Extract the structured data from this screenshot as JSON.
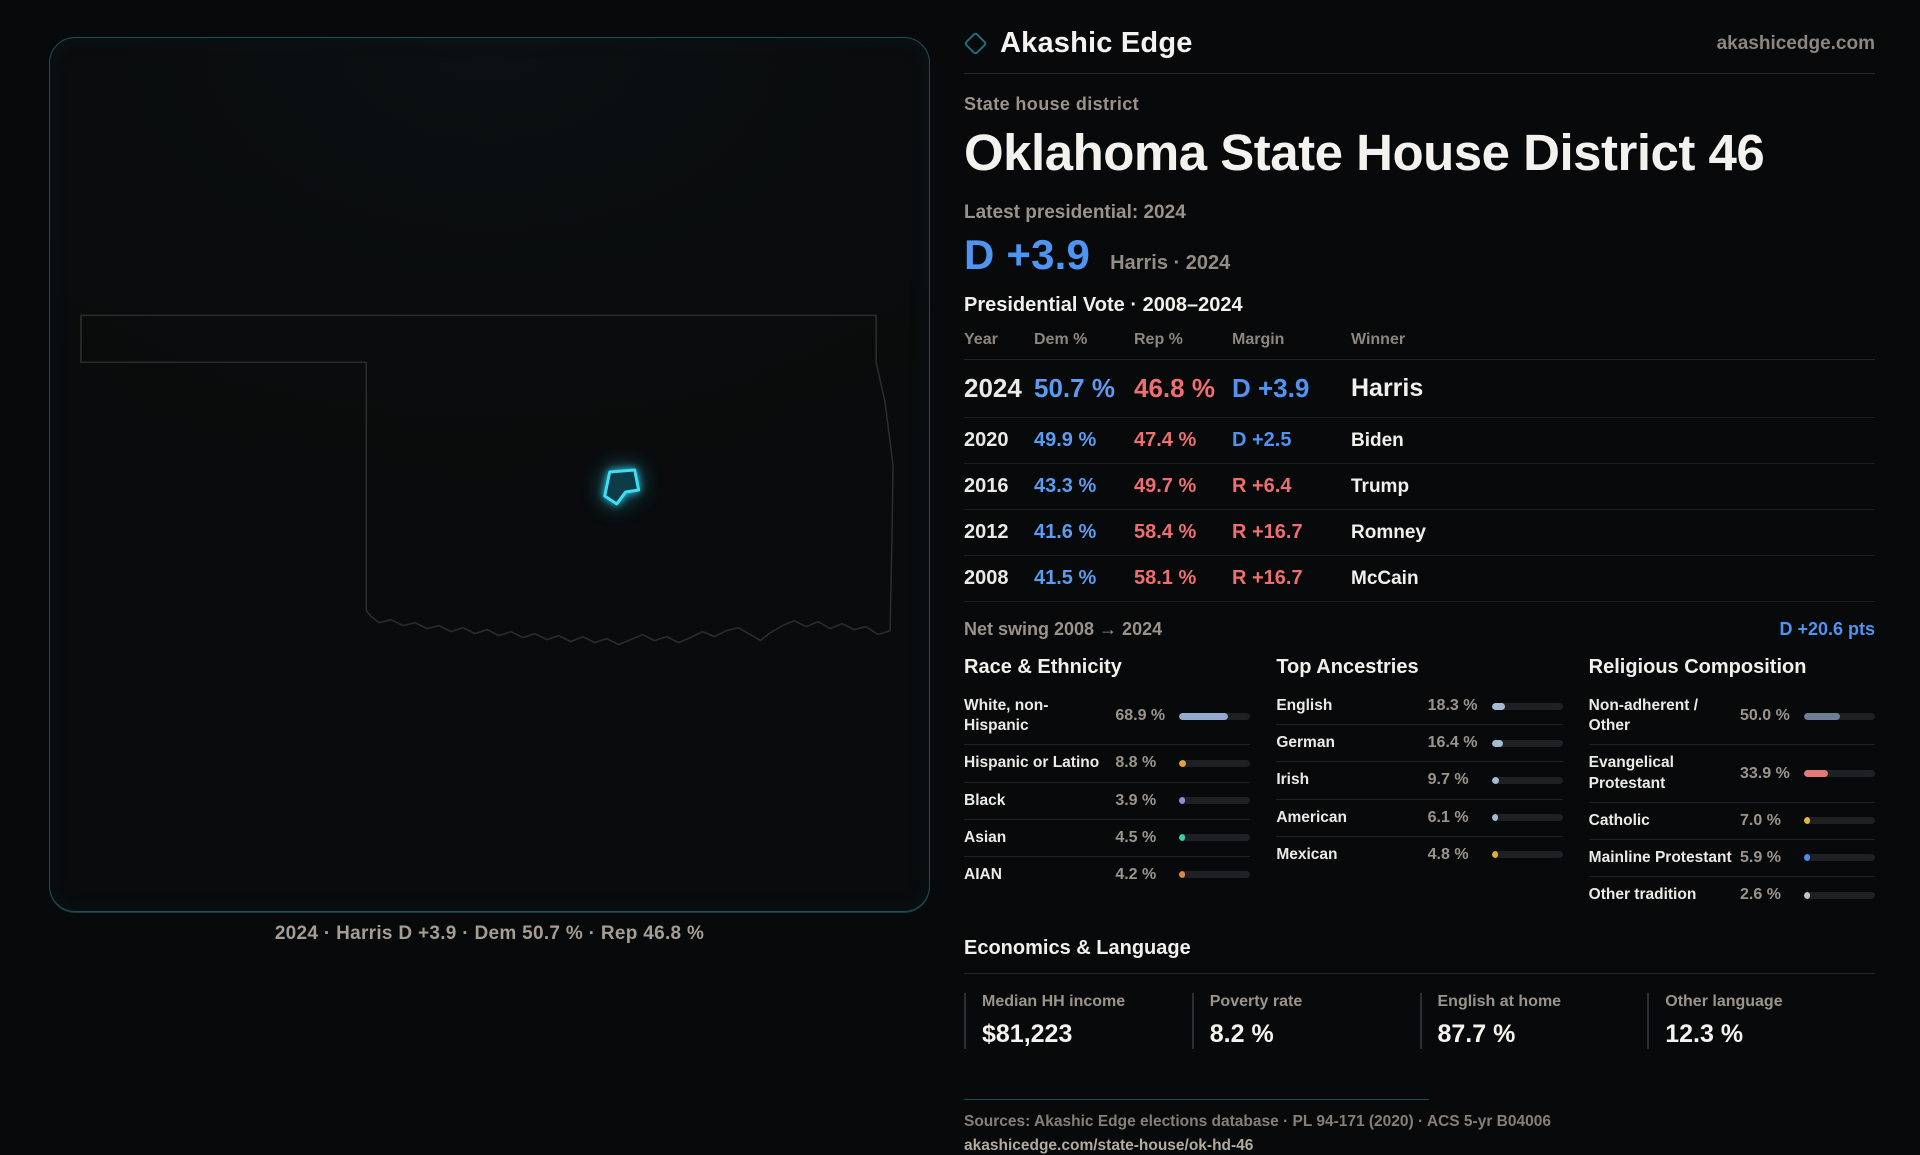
{
  "brand": {
    "name": "Akashic Edge",
    "site": "akashicedge.com"
  },
  "header": {
    "kicker": "State house district",
    "title": "Oklahoma State House District 46",
    "latest_label": "Latest presidential: 2024",
    "margin_big": "D +3.9",
    "margin_context": "Harris · 2024"
  },
  "pres_table": {
    "title": "Presidential Vote · 2008–2024",
    "columns": {
      "year": "Year",
      "dem": "Dem %",
      "rep": "Rep %",
      "margin": "Margin",
      "winner": "Winner"
    },
    "rows": [
      {
        "year": "2024",
        "dem": "50.7 %",
        "rep": "46.8 %",
        "margin": "D +3.9",
        "party": "D",
        "winner": "Harris"
      },
      {
        "year": "2020",
        "dem": "49.9 %",
        "rep": "47.4 %",
        "margin": "D +2.5",
        "party": "D",
        "winner": "Biden"
      },
      {
        "year": "2016",
        "dem": "43.3 %",
        "rep": "49.7 %",
        "margin": "R +6.4",
        "party": "R",
        "winner": "Trump"
      },
      {
        "year": "2012",
        "dem": "41.6 %",
        "rep": "58.4 %",
        "margin": "R +16.7",
        "party": "R",
        "winner": "Romney"
      },
      {
        "year": "2008",
        "dem": "41.5 %",
        "rep": "58.1 %",
        "margin": "R +16.7",
        "party": "R",
        "winner": "McCain"
      }
    ]
  },
  "net_swing": {
    "label": "Net swing 2008 → 2024",
    "value": "D +20.6 pts"
  },
  "demographics": {
    "race": {
      "title": "Race & Ethnicity",
      "rows": [
        {
          "label": "White, non-Hispanic",
          "value": "68.9 %",
          "pct": 68.9,
          "color": "#94aacb"
        },
        {
          "label": "Hispanic or Latino",
          "value": "8.8 %",
          "pct": 8.8,
          "color": "#e2a33d"
        },
        {
          "label": "Black",
          "value": "3.9 %",
          "pct": 3.9,
          "color": "#9c85e8"
        },
        {
          "label": "Asian",
          "value": "4.5 %",
          "pct": 4.5,
          "color": "#3fcea3"
        },
        {
          "label": "AIAN",
          "value": "4.2 %",
          "pct": 4.2,
          "color": "#de8a3b"
        }
      ]
    },
    "ancestries": {
      "title": "Top Ancestries",
      "rows": [
        {
          "label": "English",
          "value": "18.3 %",
          "pct": 18.3,
          "color": "#a7bad4"
        },
        {
          "label": "German",
          "value": "16.4 %",
          "pct": 16.4,
          "color": "#a7bad4"
        },
        {
          "label": "Irish",
          "value": "9.7 %",
          "pct": 9.7,
          "color": "#a7bad4"
        },
        {
          "label": "American",
          "value": "6.1 %",
          "pct": 6.1,
          "color": "#a7bad4"
        },
        {
          "label": "Mexican",
          "value": "4.8 %",
          "pct": 4.8,
          "color": "#e8ab34"
        }
      ]
    },
    "religion": {
      "title": "Religious Composition",
      "rows": [
        {
          "label": "Non-adherent / Other",
          "value": "50.0 %",
          "pct": 50.0,
          "color": "#6e7e93"
        },
        {
          "label": "Evangelical Protestant",
          "value": "33.9 %",
          "pct": 33.9,
          "color": "#e27a77"
        },
        {
          "label": "Catholic",
          "value": "7.0 %",
          "pct": 7.0,
          "color": "#e5b733"
        },
        {
          "label": "Mainline Protestant",
          "value": "5.9 %",
          "pct": 5.9,
          "color": "#4b8cf0"
        },
        {
          "label": "Other tradition",
          "value": "2.6 %",
          "pct": 2.6,
          "color": "#c2c4c7"
        }
      ]
    }
  },
  "economics": {
    "title": "Economics & Language",
    "stats": [
      {
        "label": "Median HH income",
        "value": "$81,223"
      },
      {
        "label": "Poverty rate",
        "value": "8.2 %"
      },
      {
        "label": "English at home",
        "value": "87.7 %"
      },
      {
        "label": "Other language",
        "value": "12.3 %"
      }
    ]
  },
  "footer": {
    "sources": "Sources: Akashic Edge elections database · PL 94-171 (2020) · ACS 5-yr B04006",
    "permalink": "akashicedge.com/state-house/ok-hd-46"
  },
  "map": {
    "caption": "2024 · Harris D +3.9 · Dem 50.7 % · Rep 46.8 %",
    "district_color": "#3edff5",
    "outline_color": "#2c2c2d"
  },
  "chart_data": [
    {
      "type": "table",
      "title": "Presidential Vote · 2008–2024",
      "columns": [
        "Year",
        "Dem %",
        "Rep %",
        "Margin",
        "Winner"
      ],
      "rows": [
        [
          "2024",
          50.7,
          46.8,
          "D +3.9",
          "Harris"
        ],
        [
          "2020",
          49.9,
          47.4,
          "D +2.5",
          "Biden"
        ],
        [
          "2016",
          43.3,
          49.7,
          "R +6.4",
          "Trump"
        ],
        [
          "2012",
          41.6,
          58.4,
          "R +16.7",
          "Romney"
        ],
        [
          "2008",
          41.5,
          58.1,
          "R +16.7",
          "McCain"
        ]
      ],
      "net_swing_2008_2024": "D +20.6 pts"
    },
    {
      "type": "bar",
      "title": "Race & Ethnicity",
      "categories": [
        "White, non-Hispanic",
        "Hispanic or Latino",
        "Black",
        "Asian",
        "AIAN"
      ],
      "values": [
        68.9,
        8.8,
        3.9,
        4.5,
        4.2
      ],
      "xlabel": "",
      "ylabel": "%",
      "ylim": [
        0,
        100
      ]
    },
    {
      "type": "bar",
      "title": "Top Ancestries",
      "categories": [
        "English",
        "German",
        "Irish",
        "American",
        "Mexican"
      ],
      "values": [
        18.3,
        16.4,
        9.7,
        6.1,
        4.8
      ],
      "xlabel": "",
      "ylabel": "%",
      "ylim": [
        0,
        100
      ]
    },
    {
      "type": "bar",
      "title": "Religious Composition",
      "categories": [
        "Non-adherent / Other",
        "Evangelical Protestant",
        "Catholic",
        "Mainline Protestant",
        "Other tradition"
      ],
      "values": [
        50.0,
        33.9,
        7.0,
        5.9,
        2.6
      ],
      "xlabel": "",
      "ylabel": "%",
      "ylim": [
        0,
        100
      ]
    },
    {
      "type": "table",
      "title": "Economics & Language",
      "columns": [
        "Median HH income",
        "Poverty rate",
        "English at home",
        "Other language"
      ],
      "rows": [
        [
          "$81,223",
          "8.2 %",
          "87.7 %",
          "12.3 %"
        ]
      ]
    }
  ]
}
